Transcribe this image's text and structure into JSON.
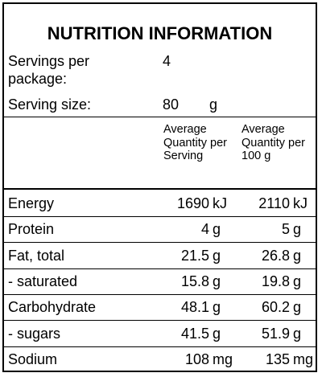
{
  "title": "NUTRITION INFORMATION",
  "servings": {
    "label": "Servings per package:",
    "value": "4"
  },
  "serving_size": {
    "label": "Serving size:",
    "value": "80",
    "unit": "g"
  },
  "columns": {
    "per_serving": "Average Quantity per Serving",
    "per_100g": "Average Quantity per 100 g"
  },
  "rows": [
    {
      "name": "Energy",
      "serving": "1690",
      "serving_unit": "kJ",
      "per100": "2110",
      "per100_unit": "kJ"
    },
    {
      "name": "Protein",
      "serving": "4",
      "serving_unit": "g",
      "per100": "5",
      "per100_unit": "g"
    },
    {
      "name": "Fat, total",
      "serving": "21.5",
      "serving_unit": "g",
      "per100": "26.8",
      "per100_unit": "g"
    },
    {
      "name": "- saturated",
      "serving": "15.8",
      "serving_unit": "g",
      "per100": "19.8",
      "per100_unit": "g"
    },
    {
      "name": "Carbohydrate",
      "serving": "48.1",
      "serving_unit": "g",
      "per100": "60.2",
      "per100_unit": "g"
    },
    {
      "name": "- sugars",
      "serving": "41.5",
      "serving_unit": "g",
      "per100": "51.9",
      "per100_unit": "g"
    },
    {
      "name": "Sodium",
      "serving": "108",
      "serving_unit": "mg",
      "per100": "135",
      "per100_unit": "mg"
    }
  ]
}
